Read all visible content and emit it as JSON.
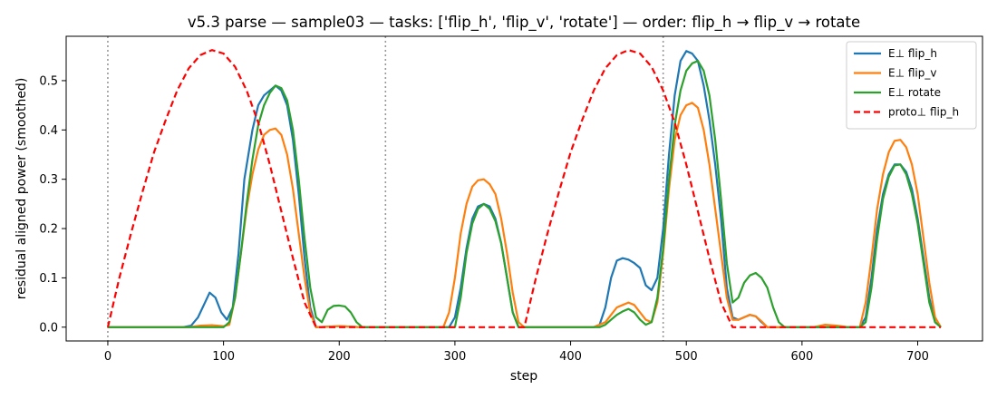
{
  "chart_data": {
    "type": "line",
    "title": "v5.3 parse — sample03 — tasks: ['flip_h', 'flip_v', 'rotate'] — order: flip_h → flip_v → rotate",
    "xlabel": "step",
    "ylabel": "residual aligned power (smoothed)",
    "xlim": [
      -36,
      756
    ],
    "ylim": [
      -0.028,
      0.59
    ],
    "xticks": [
      0,
      100,
      200,
      300,
      400,
      500,
      600,
      700
    ],
    "yticks": [
      0.0,
      0.1,
      0.2,
      0.3,
      0.4,
      0.5
    ],
    "ytick_labels": [
      "0.0",
      "0.1",
      "0.2",
      "0.3",
      "0.4",
      "0.5"
    ],
    "vlines": [
      0,
      240,
      480
    ],
    "legend_position": "top-right",
    "series": [
      {
        "name": "E⊥ flip_h",
        "color": "#1f77b4",
        "style": "solid",
        "points": [
          [
            0,
            0
          ],
          [
            65,
            0
          ],
          [
            72,
            0.003
          ],
          [
            78,
            0.02
          ],
          [
            83,
            0.045
          ],
          [
            88,
            0.07
          ],
          [
            93,
            0.06
          ],
          [
            98,
            0.03
          ],
          [
            103,
            0.015
          ],
          [
            108,
            0.04
          ],
          [
            113,
            0.15
          ],
          [
            118,
            0.3
          ],
          [
            125,
            0.4
          ],
          [
            130,
            0.45
          ],
          [
            135,
            0.47
          ],
          [
            140,
            0.48
          ],
          [
            145,
            0.49
          ],
          [
            150,
            0.48
          ],
          [
            155,
            0.45
          ],
          [
            160,
            0.38
          ],
          [
            165,
            0.27
          ],
          [
            170,
            0.14
          ],
          [
            175,
            0.04
          ],
          [
            180,
            0
          ],
          [
            200,
            0.002
          ],
          [
            220,
            0
          ],
          [
            295,
            0
          ],
          [
            300,
            0.02
          ],
          [
            305,
            0.08
          ],
          [
            310,
            0.16
          ],
          [
            315,
            0.22
          ],
          [
            320,
            0.245
          ],
          [
            325,
            0.25
          ],
          [
            330,
            0.245
          ],
          [
            335,
            0.22
          ],
          [
            340,
            0.17
          ],
          [
            345,
            0.1
          ],
          [
            350,
            0.03
          ],
          [
            355,
            0
          ],
          [
            420,
            0
          ],
          [
            425,
            0.005
          ],
          [
            430,
            0.04
          ],
          [
            435,
            0.1
          ],
          [
            440,
            0.135
          ],
          [
            445,
            0.14
          ],
          [
            450,
            0.137
          ],
          [
            455,
            0.13
          ],
          [
            460,
            0.12
          ],
          [
            465,
            0.085
          ],
          [
            470,
            0.075
          ],
          [
            475,
            0.1
          ],
          [
            480,
            0.2
          ],
          [
            485,
            0.35
          ],
          [
            490,
            0.47
          ],
          [
            495,
            0.54
          ],
          [
            500,
            0.56
          ],
          [
            505,
            0.555
          ],
          [
            510,
            0.54
          ],
          [
            515,
            0.49
          ],
          [
            520,
            0.42
          ],
          [
            525,
            0.33
          ],
          [
            530,
            0.22
          ],
          [
            535,
            0.08
          ],
          [
            540,
            0.02
          ],
          [
            545,
            0.015
          ],
          [
            550,
            0.02
          ],
          [
            555,
            0.025
          ],
          [
            560,
            0.022
          ],
          [
            565,
            0.01
          ],
          [
            570,
            0
          ],
          [
            650,
            0
          ],
          [
            655,
            0.02
          ],
          [
            660,
            0.1
          ],
          [
            665,
            0.2
          ],
          [
            670,
            0.27
          ],
          [
            675,
            0.31
          ],
          [
            680,
            0.33
          ],
          [
            685,
            0.33
          ],
          [
            690,
            0.315
          ],
          [
            695,
            0.28
          ],
          [
            700,
            0.22
          ],
          [
            705,
            0.14
          ],
          [
            710,
            0.06
          ],
          [
            715,
            0.01
          ],
          [
            720,
            0
          ]
        ]
      },
      {
        "name": "E⊥ flip_v",
        "color": "#ff7f0e",
        "style": "solid",
        "points": [
          [
            0,
            0
          ],
          [
            70,
            0
          ],
          [
            80,
            0.003
          ],
          [
            90,
            0.004
          ],
          [
            100,
            0.002
          ],
          [
            105,
            0.005
          ],
          [
            110,
            0.06
          ],
          [
            115,
            0.15
          ],
          [
            120,
            0.24
          ],
          [
            125,
            0.31
          ],
          [
            130,
            0.36
          ],
          [
            135,
            0.39
          ],
          [
            140,
            0.4
          ],
          [
            145,
            0.403
          ],
          [
            150,
            0.39
          ],
          [
            155,
            0.35
          ],
          [
            160,
            0.28
          ],
          [
            165,
            0.19
          ],
          [
            170,
            0.1
          ],
          [
            175,
            0.03
          ],
          [
            180,
            0
          ],
          [
            200,
            0.002
          ],
          [
            220,
            0
          ],
          [
            290,
            0
          ],
          [
            295,
            0.03
          ],
          [
            300,
            0.1
          ],
          [
            305,
            0.19
          ],
          [
            310,
            0.25
          ],
          [
            315,
            0.285
          ],
          [
            320,
            0.298
          ],
          [
            325,
            0.3
          ],
          [
            330,
            0.29
          ],
          [
            335,
            0.27
          ],
          [
            340,
            0.22
          ],
          [
            345,
            0.15
          ],
          [
            350,
            0.07
          ],
          [
            355,
            0.01
          ],
          [
            360,
            0
          ],
          [
            420,
            0
          ],
          [
            430,
            0.01
          ],
          [
            435,
            0.025
          ],
          [
            440,
            0.04
          ],
          [
            445,
            0.045
          ],
          [
            450,
            0.05
          ],
          [
            455,
            0.045
          ],
          [
            460,
            0.03
          ],
          [
            465,
            0.015
          ],
          [
            470,
            0.01
          ],
          [
            475,
            0.05
          ],
          [
            480,
            0.15
          ],
          [
            485,
            0.28
          ],
          [
            490,
            0.38
          ],
          [
            495,
            0.43
          ],
          [
            500,
            0.45
          ],
          [
            505,
            0.455
          ],
          [
            510,
            0.445
          ],
          [
            515,
            0.4
          ],
          [
            520,
            0.33
          ],
          [
            525,
            0.24
          ],
          [
            530,
            0.15
          ],
          [
            535,
            0.06
          ],
          [
            540,
            0.015
          ],
          [
            545,
            0.015
          ],
          [
            550,
            0.02
          ],
          [
            555,
            0.025
          ],
          [
            560,
            0.022
          ],
          [
            565,
            0.012
          ],
          [
            570,
            0
          ],
          [
            610,
            0
          ],
          [
            620,
            0.005
          ],
          [
            630,
            0.003
          ],
          [
            640,
            0
          ],
          [
            650,
            0
          ],
          [
            655,
            0.05
          ],
          [
            660,
            0.14
          ],
          [
            665,
            0.24
          ],
          [
            670,
            0.31
          ],
          [
            675,
            0.355
          ],
          [
            680,
            0.378
          ],
          [
            685,
            0.38
          ],
          [
            690,
            0.365
          ],
          [
            695,
            0.33
          ],
          [
            700,
            0.27
          ],
          [
            705,
            0.18
          ],
          [
            710,
            0.09
          ],
          [
            715,
            0.02
          ],
          [
            720,
            0
          ]
        ]
      },
      {
        "name": "E⊥ rotate",
        "color": "#2ca02c",
        "style": "solid",
        "points": [
          [
            0,
            0
          ],
          [
            100,
            0
          ],
          [
            105,
            0.01
          ],
          [
            110,
            0.06
          ],
          [
            115,
            0.15
          ],
          [
            120,
            0.25
          ],
          [
            125,
            0.34
          ],
          [
            130,
            0.41
          ],
          [
            135,
            0.45
          ],
          [
            140,
            0.475
          ],
          [
            145,
            0.49
          ],
          [
            150,
            0.485
          ],
          [
            155,
            0.46
          ],
          [
            160,
            0.4
          ],
          [
            165,
            0.3
          ],
          [
            170,
            0.18
          ],
          [
            175,
            0.08
          ],
          [
            180,
            0.02
          ],
          [
            185,
            0.01
          ],
          [
            190,
            0.035
          ],
          [
            195,
            0.043
          ],
          [
            200,
            0.044
          ],
          [
            205,
            0.042
          ],
          [
            210,
            0.03
          ],
          [
            215,
            0.01
          ],
          [
            220,
            0
          ],
          [
            300,
            0
          ],
          [
            305,
            0.06
          ],
          [
            310,
            0.15
          ],
          [
            315,
            0.21
          ],
          [
            320,
            0.24
          ],
          [
            325,
            0.25
          ],
          [
            330,
            0.24
          ],
          [
            335,
            0.215
          ],
          [
            340,
            0.17
          ],
          [
            345,
            0.1
          ],
          [
            350,
            0.03
          ],
          [
            355,
            0
          ],
          [
            425,
            0
          ],
          [
            430,
            0.005
          ],
          [
            435,
            0.015
          ],
          [
            440,
            0.025
          ],
          [
            445,
            0.032
          ],
          [
            450,
            0.037
          ],
          [
            455,
            0.03
          ],
          [
            460,
            0.015
          ],
          [
            465,
            0.005
          ],
          [
            470,
            0.01
          ],
          [
            475,
            0.06
          ],
          [
            480,
            0.16
          ],
          [
            485,
            0.3
          ],
          [
            490,
            0.41
          ],
          [
            495,
            0.48
          ],
          [
            500,
            0.52
          ],
          [
            505,
            0.535
          ],
          [
            510,
            0.54
          ],
          [
            515,
            0.52
          ],
          [
            520,
            0.47
          ],
          [
            525,
            0.38
          ],
          [
            530,
            0.26
          ],
          [
            535,
            0.13
          ],
          [
            540,
            0.05
          ],
          [
            545,
            0.06
          ],
          [
            550,
            0.09
          ],
          [
            555,
            0.105
          ],
          [
            560,
            0.11
          ],
          [
            565,
            0.1
          ],
          [
            570,
            0.08
          ],
          [
            575,
            0.04
          ],
          [
            580,
            0.01
          ],
          [
            585,
            0
          ],
          [
            650,
            0
          ],
          [
            655,
            0.01
          ],
          [
            660,
            0.08
          ],
          [
            665,
            0.18
          ],
          [
            670,
            0.26
          ],
          [
            675,
            0.305
          ],
          [
            680,
            0.328
          ],
          [
            685,
            0.33
          ],
          [
            690,
            0.31
          ],
          [
            695,
            0.27
          ],
          [
            700,
            0.21
          ],
          [
            705,
            0.13
          ],
          [
            710,
            0.05
          ],
          [
            715,
            0.01
          ],
          [
            720,
            0
          ]
        ]
      },
      {
        "name": "proto⊥ flip_h",
        "color": "#ff0000",
        "style": "dashed",
        "points": [
          [
            0,
            0
          ],
          [
            10,
            0.1
          ],
          [
            20,
            0.19
          ],
          [
            30,
            0.275
          ],
          [
            40,
            0.355
          ],
          [
            50,
            0.42
          ],
          [
            60,
            0.48
          ],
          [
            70,
            0.525
          ],
          [
            80,
            0.552
          ],
          [
            90,
            0.562
          ],
          [
            100,
            0.555
          ],
          [
            110,
            0.528
          ],
          [
            120,
            0.48
          ],
          [
            130,
            0.415
          ],
          [
            140,
            0.33
          ],
          [
            150,
            0.235
          ],
          [
            160,
            0.14
          ],
          [
            170,
            0.05
          ],
          [
            180,
            0
          ],
          [
            360,
            0
          ],
          [
            370,
            0.1
          ],
          [
            380,
            0.19
          ],
          [
            390,
            0.275
          ],
          [
            400,
            0.355
          ],
          [
            410,
            0.42
          ],
          [
            420,
            0.48
          ],
          [
            430,
            0.525
          ],
          [
            440,
            0.552
          ],
          [
            450,
            0.562
          ],
          [
            460,
            0.555
          ],
          [
            470,
            0.528
          ],
          [
            480,
            0.48
          ],
          [
            490,
            0.415
          ],
          [
            500,
            0.33
          ],
          [
            510,
            0.235
          ],
          [
            520,
            0.14
          ],
          [
            530,
            0.05
          ],
          [
            540,
            0
          ],
          [
            720,
            0
          ]
        ]
      }
    ]
  }
}
